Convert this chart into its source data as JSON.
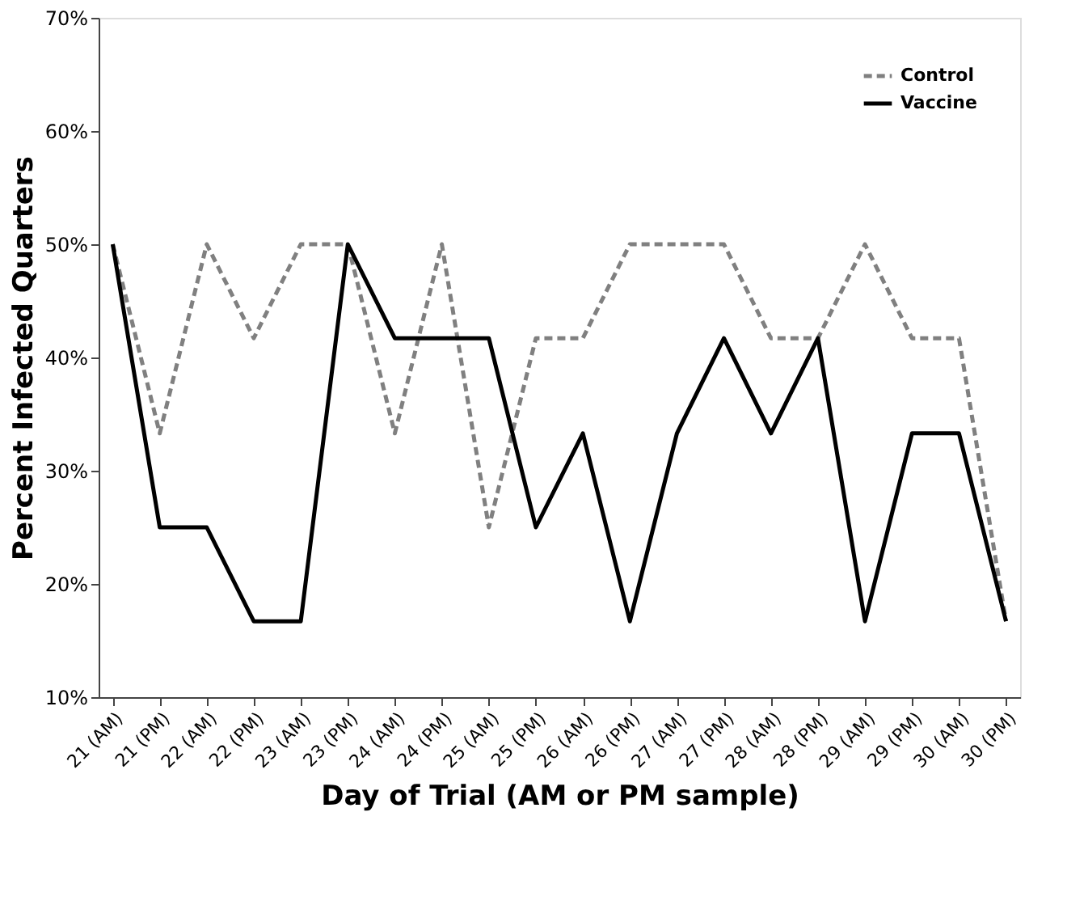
{
  "chart_data": {
    "type": "line",
    "xlabel": "Day of Trial (AM or PM sample)",
    "ylabel": "Percent Infected Quarters",
    "categories": [
      "21 (AM)",
      "21 (PM)",
      "22 (AM)",
      "22 (PM)",
      "23 (AM)",
      "23 (PM)",
      "24 (AM)",
      "24 (PM)",
      "25 (AM)",
      "25 (PM)",
      "26 (AM)",
      "26 (PM)",
      "27 (AM)",
      "27 (PM)",
      "28 (AM)",
      "28 (PM)",
      "29 (AM)",
      "29 (PM)",
      "30 (AM)",
      "30 (PM)"
    ],
    "series": [
      {
        "name": "Control",
        "color": "#808080",
        "line_style": "dashed",
        "values": [
          50,
          33.3,
          50,
          41.7,
          50,
          50,
          33.3,
          50,
          25,
          41.7,
          41.7,
          50,
          50,
          50,
          41.7,
          41.7,
          50,
          41.7,
          41.7,
          16.7
        ]
      },
      {
        "name": "Vaccine",
        "color": "#000000",
        "line_style": "solid",
        "values": [
          50,
          25,
          25,
          16.7,
          16.7,
          50,
          41.7,
          41.7,
          41.7,
          25,
          33.3,
          16.7,
          33.3,
          41.7,
          33.3,
          41.7,
          16.7,
          33.3,
          33.3,
          16.7
        ]
      }
    ],
    "ylim": [
      10,
      70
    ],
    "yticks": [
      {
        "value": 10,
        "label": "10%"
      },
      {
        "value": 20,
        "label": "20%"
      },
      {
        "value": 30,
        "label": "30%"
      },
      {
        "value": 40,
        "label": "40%"
      },
      {
        "value": 50,
        "label": "50%"
      },
      {
        "value": 60,
        "label": "60%"
      },
      {
        "value": 70,
        "label": "70%"
      }
    ],
    "grid": false,
    "legend": "top right",
    "marker": "none"
  }
}
